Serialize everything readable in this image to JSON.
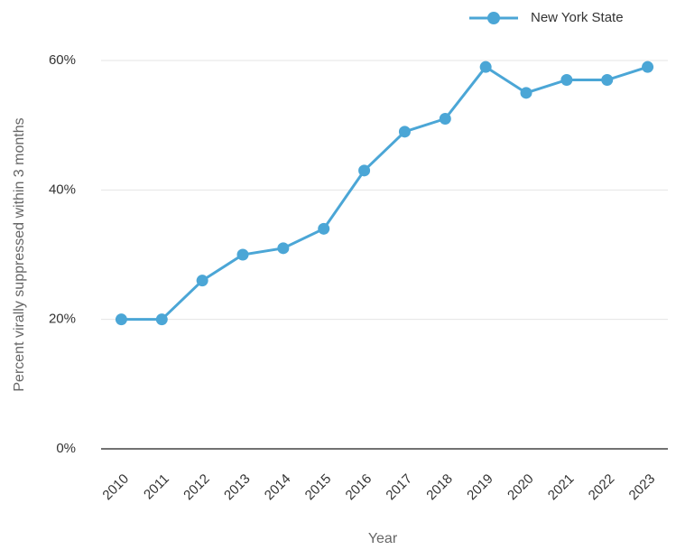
{
  "chart_data": {
    "type": "line",
    "x_label": "Year",
    "y_label": "Percent virally suppressed within 3 months",
    "categories": [
      "2010",
      "2011",
      "2012",
      "2013",
      "2014",
      "2015",
      "2016",
      "2017",
      "2018",
      "2019",
      "2020",
      "2021",
      "2022",
      "2023"
    ],
    "series": [
      {
        "name": "New York State",
        "color": "#4ba6d6",
        "values": [
          20,
          20,
          26,
          30,
          31,
          34,
          43,
          49,
          51,
          59,
          55,
          57,
          57,
          59
        ]
      }
    ],
    "ylim": [
      0,
      60
    ],
    "yticks": [
      {
        "value": 0,
        "label": "0%"
      },
      {
        "value": 20,
        "label": "20%"
      },
      {
        "value": 40,
        "label": "40%"
      },
      {
        "value": 60,
        "label": "60%"
      }
    ],
    "grid": true,
    "legend": "top-right"
  }
}
